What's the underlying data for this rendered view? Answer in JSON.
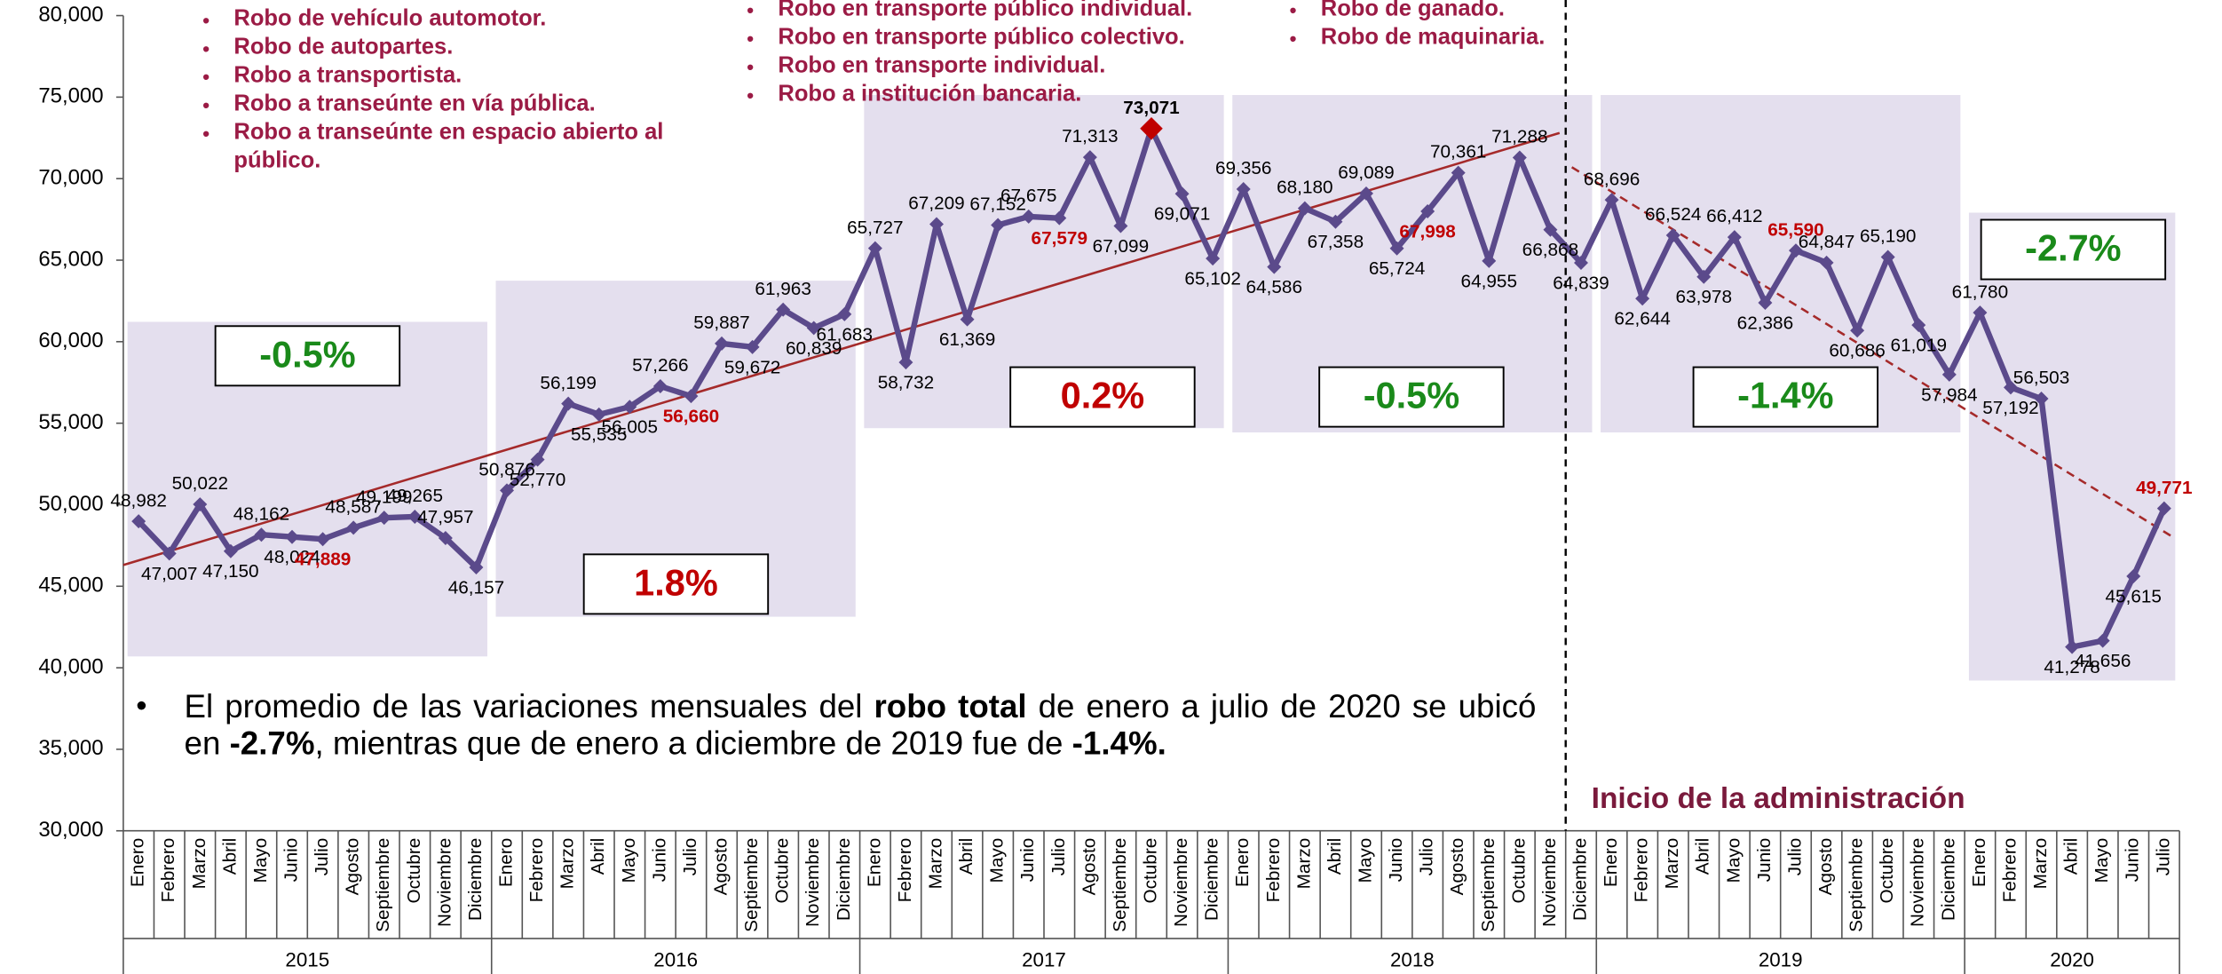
{
  "chart_data": {
    "type": "line",
    "crime_types": [
      [
        "Robo de vehículo automotor.",
        "Robo de autopartes.",
        "Robo a transportista.",
        "Robo a transeúnte en vía pública.",
        "Robo a transeúnte en espacio abierto al público."
      ],
      [
        "Robo en transporte público individual.",
        "Robo en transporte público colectivo.",
        "Robo en transporte individual.",
        "Robo a institución bancaria."
      ],
      [
        "Robo de ganado.",
        "Robo de maquinaria."
      ]
    ],
    "note": [
      "El promedio de las variaciones mensuales del ",
      "robo total",
      " de enero a julio de 2020 se ubicó en ",
      "-2.7%",
      ", mientras que de enero a diciembre de 2019 fue de ",
      "-1.4%."
    ],
    "administration_label": "Inicio de la administración",
    "categories": [
      "Enero",
      "Febrero",
      "Marzo",
      "Abril",
      "Mayo",
      "Junio",
      "Julio",
      "Agosto",
      "Septiembre",
      "Octubre",
      "Noviembre",
      "Diciembre",
      "Enero",
      "Febrero",
      "Marzo",
      "Abril",
      "Mayo",
      "Junio",
      "Julio",
      "Agosto",
      "Septiembre",
      "Octubre",
      "Noviembre",
      "Diciembre",
      "Enero",
      "Febrero",
      "Marzo",
      "Abril",
      "Mayo",
      "Junio",
      "Julio",
      "Agosto",
      "Septiembre",
      "Octubre",
      "Noviembre",
      "Diciembre",
      "Enero",
      "Febrero",
      "Marzo",
      "Abril",
      "Mayo",
      "Junio",
      "Julio",
      "Agosto",
      "Septiembre",
      "Octubre",
      "Noviembre",
      "Diciembre",
      "Enero",
      "Febrero",
      "Marzo",
      "Abril",
      "Mayo",
      "Junio",
      "Julio",
      "Agosto",
      "Septiembre",
      "Octubre",
      "Noviembre",
      "Diciembre",
      "Enero",
      "Febrero",
      "Marzo",
      "Abril",
      "Mayo",
      "Junio",
      "Julio"
    ],
    "years": [
      "2015",
      "2016",
      "2017",
      "2018",
      "2019",
      "2020"
    ],
    "values": [
      48982,
      47007,
      50022,
      47150,
      48162,
      48024,
      47889,
      48587,
      49199,
      49265,
      47957,
      46157,
      50876,
      52770,
      56199,
      55535,
      56005,
      57266,
      56660,
      59887,
      59672,
      61963,
      60839,
      61683,
      65727,
      58732,
      67209,
      61369,
      67152,
      67675,
      67579,
      71313,
      67099,
      73071,
      69071,
      65102,
      69356,
      64586,
      68180,
      67358,
      69089,
      65724,
      67998,
      70361,
      64955,
      71288,
      66868,
      64839,
      68696,
      62644,
      66524,
      63978,
      66412,
      62386,
      65590,
      64847,
      60686,
      65190,
      61019,
      57984,
      61780,
      57192,
      56503,
      41278,
      41656,
      45615,
      49771
    ],
    "value_labels": [
      "48,982",
      "47,007",
      "50,022",
      "47,150",
      "48,162",
      "48,024",
      "47,889",
      "48,587",
      "49,199",
      "49,265",
      "47,957",
      "46,157",
      "50,876",
      "52,770",
      "56,199",
      "55,535",
      "56,005",
      "57,266",
      "56,660",
      "59,887",
      "59,672",
      "61,963",
      "60,839",
      "61,683",
      "65,727",
      "58,732",
      "67,209",
      "61,369",
      "67,152",
      "67,675",
      "67,579",
      "71,313",
      "67,099",
      "73,071",
      "69,071",
      "65,102",
      "69,356",
      "64,586",
      "68,180",
      "67,358",
      "69,089",
      "65,724",
      "67,998",
      "70,361",
      "64,955",
      "71,288",
      "66,868",
      "64,839",
      "68,696",
      "62,644",
      "66,524",
      "63,978",
      "66,412",
      "62,386",
      "65,590",
      "64,847",
      "60,686",
      "65,190",
      "61,019",
      "57,984",
      "61,780",
      "57,192",
      "56,503",
      "41,278",
      "41,656",
      "45,615",
      "49,771"
    ],
    "color": "#5b4a8b",
    "highlight_month": "Julio",
    "highlight_color": "#c00000",
    "max_color": "#c00000",
    "period_changes": [
      {
        "label": "-0.5%",
        "color": "#1a8a1a"
      },
      {
        "label": "1.8%",
        "color": "#c00000"
      },
      {
        "label": "0.2%",
        "color": "#c00000"
      },
      {
        "label": "-0.5%",
        "color": "#1a8a1a"
      },
      {
        "label": "-1.4%",
        "color": "#1a8a1a"
      },
      {
        "label": "-2.7%",
        "color": "#1a8a1a"
      }
    ],
    "period_box_color": "#e4dfee",
    "trend_lines": [
      {
        "style": "solid",
        "color": "#a52a2a",
        "points": [
          [
            0,
            46300
          ],
          [
            46,
            72800
          ]
        ]
      },
      {
        "style": "dashed",
        "color": "#a52a2a",
        "points": [
          [
            47,
            70700
          ],
          [
            66,
            48000
          ]
        ]
      }
    ],
    "ylim": [
      30000,
      80000
    ],
    "yticks": [
      {
        "value": 30000,
        "label": "30,000"
      },
      {
        "value": 35000,
        "label": "35,000"
      },
      {
        "value": 40000,
        "label": "40,000"
      },
      {
        "value": 45000,
        "label": "45,000"
      },
      {
        "value": 50000,
        "label": "50,000"
      },
      {
        "value": 55000,
        "label": "55,000"
      },
      {
        "value": 60000,
        "label": "60,000"
      },
      {
        "value": 65000,
        "label": "65,000"
      },
      {
        "value": 70000,
        "label": "70,000"
      },
      {
        "value": 75000,
        "label": "75,000"
      },
      {
        "value": 80000,
        "label": "80,000"
      }
    ]
  }
}
